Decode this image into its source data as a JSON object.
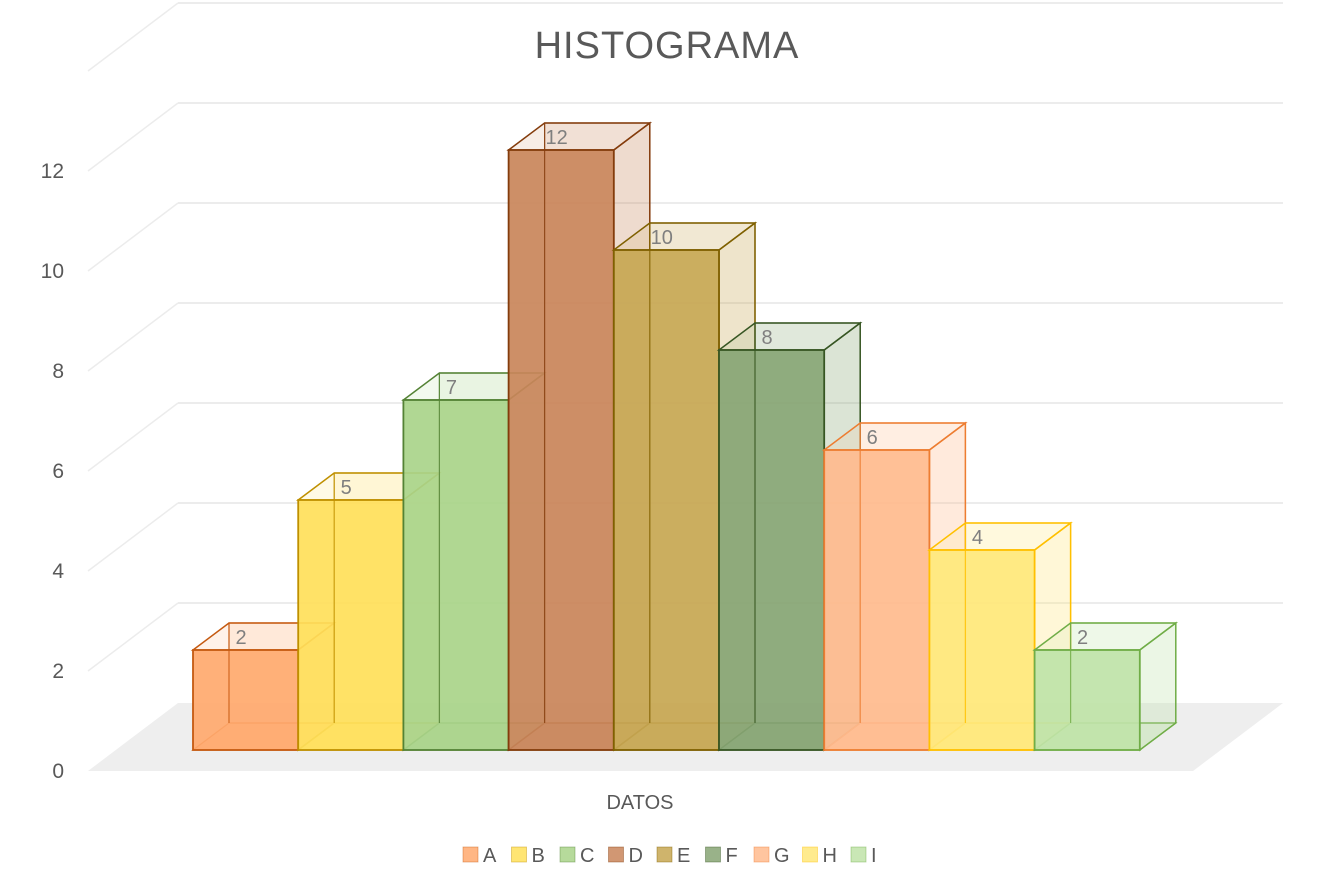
{
  "chart_data": {
    "type": "bar",
    "title": "HISTOGRAMA",
    "xlabel": "",
    "ylabel": "",
    "categories": [
      "DATOS"
    ],
    "ylim": [
      0,
      12
    ],
    "yticks": [
      0,
      2,
      4,
      6,
      8,
      10,
      12
    ],
    "grid": true,
    "legend_position": "bottom",
    "series": [
      {
        "name": "A",
        "values": [
          2
        ],
        "color": "#ffa96e",
        "edge": "#c55a11"
      },
      {
        "name": "B",
        "values": [
          5
        ],
        "color": "#ffe05a",
        "edge": "#bf9000"
      },
      {
        "name": "C",
        "values": [
          7
        ],
        "color": "#a9d48a",
        "edge": "#548235"
      },
      {
        "name": "D",
        "values": [
          12
        ],
        "color": "#c9855a",
        "edge": "#843c0c"
      },
      {
        "name": "E",
        "values": [
          10
        ],
        "color": "#c7a752",
        "edge": "#7f6000"
      },
      {
        "name": "F",
        "values": [
          8
        ],
        "color": "#87a574",
        "edge": "#375623"
      },
      {
        "name": "G",
        "values": [
          6
        ],
        "color": "#ffbb8e",
        "edge": "#ed7d31"
      },
      {
        "name": "H",
        "values": [
          4
        ],
        "color": "#ffe87a",
        "edge": "#ffc000"
      },
      {
        "name": "I",
        "values": [
          2
        ],
        "color": "#bfe3a8",
        "edge": "#70ad47"
      }
    ]
  }
}
